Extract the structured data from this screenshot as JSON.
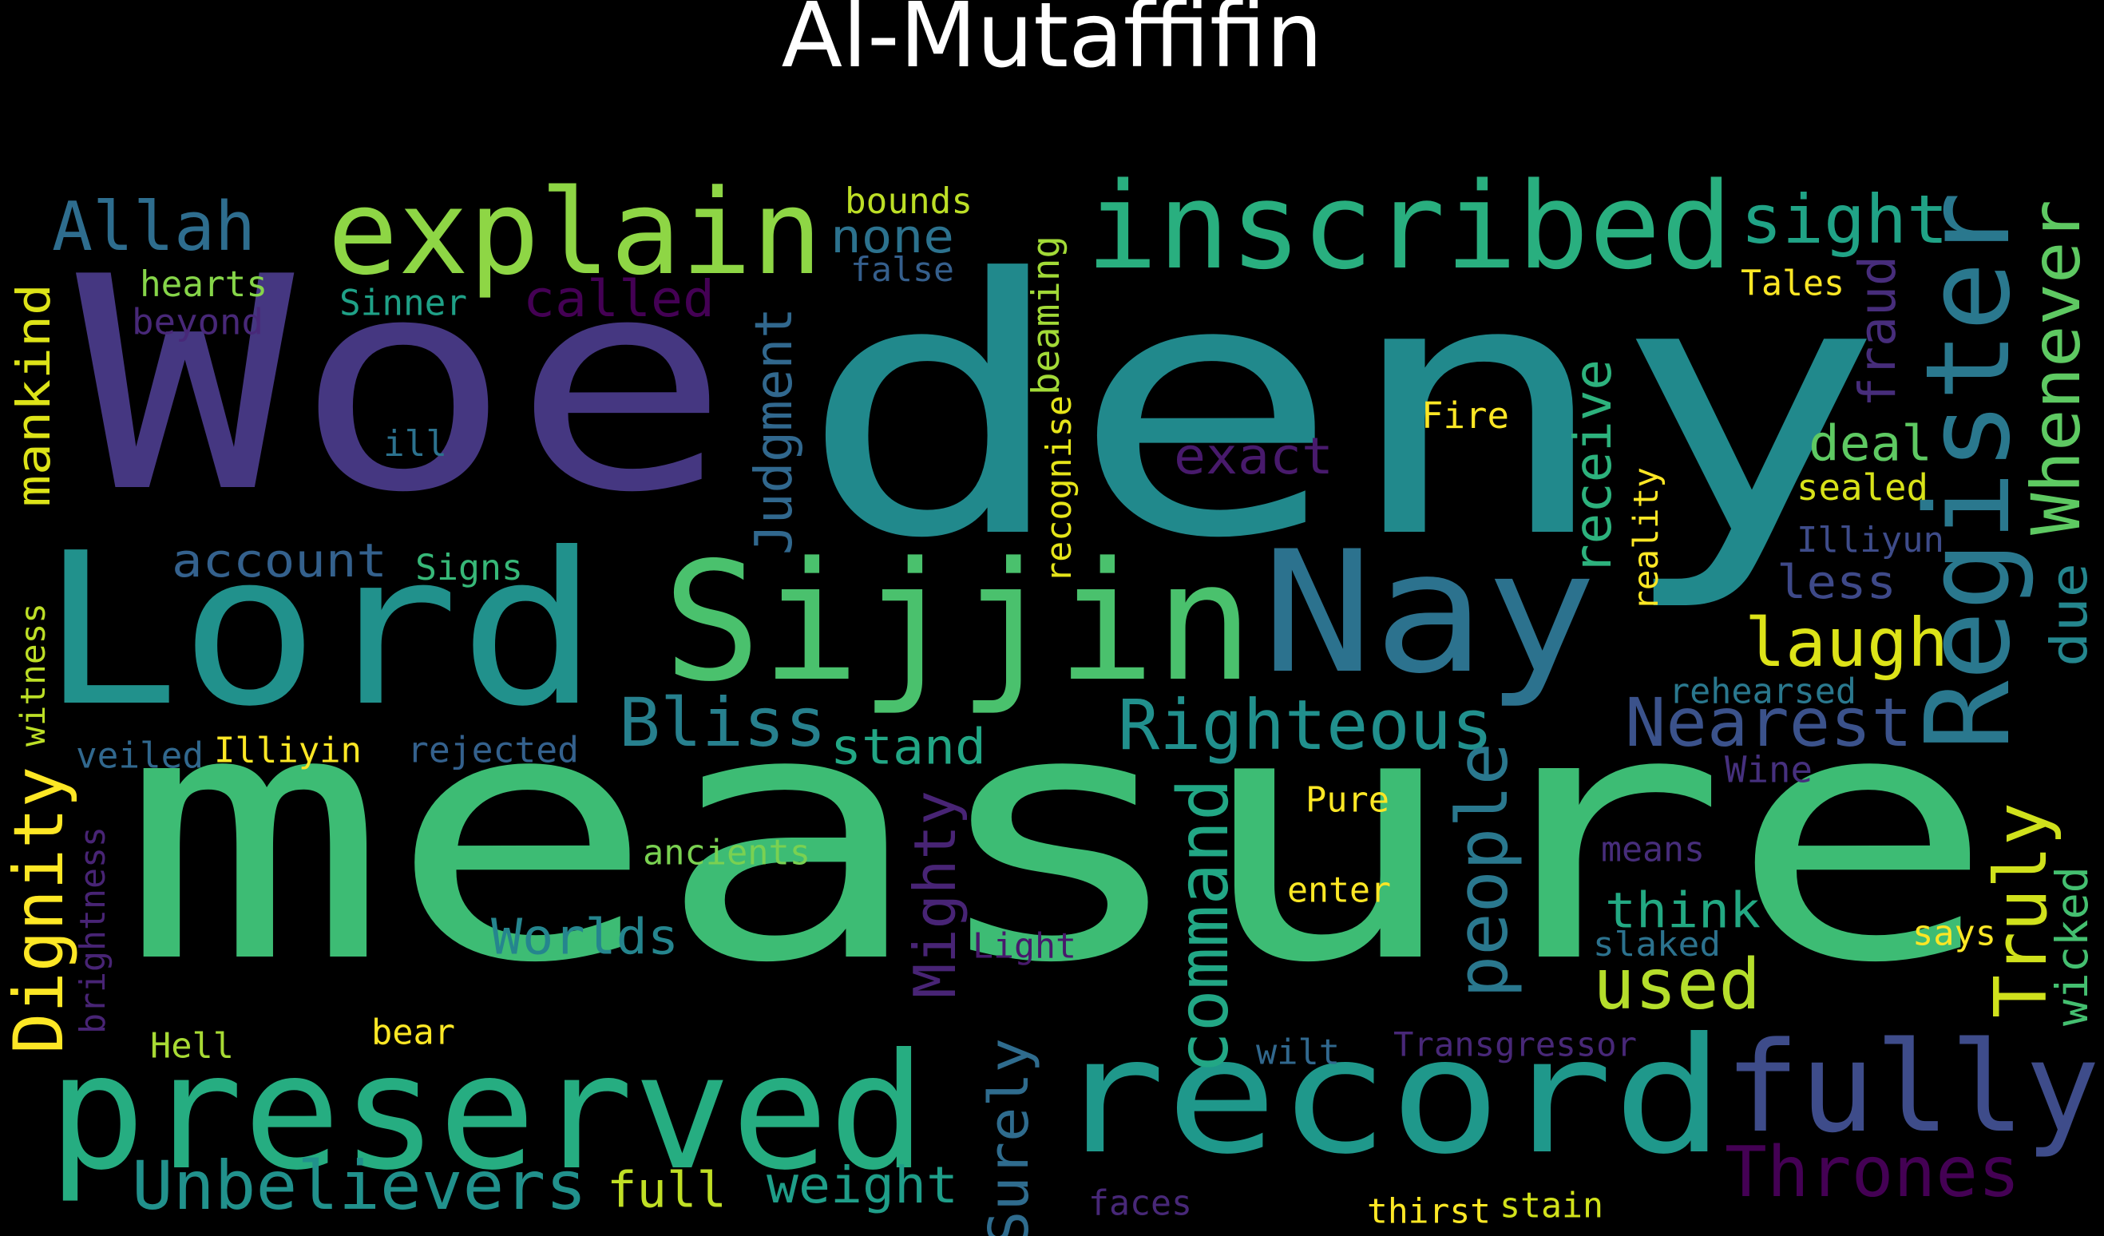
{
  "title": "Al-Mutaffifin",
  "words": [
    {
      "text": "measure",
      "color": "#3dbc74"
    },
    {
      "text": "deny",
      "color": "#21898c"
    },
    {
      "text": "Woe",
      "color": "#453781"
    },
    {
      "text": "Lord",
      "color": "#21918c"
    },
    {
      "text": "record",
      "color": "#1f988b"
    },
    {
      "text": "preserved",
      "color": "#26ad81"
    },
    {
      "text": "Sijjin",
      "color": "#4ac16d"
    },
    {
      "text": "Nay",
      "color": "#2c728e"
    },
    {
      "text": "fully",
      "color": "#3e4c8a"
    },
    {
      "text": "inscribed",
      "color": "#29af7f"
    },
    {
      "text": "explain",
      "color": "#8ed645"
    },
    {
      "text": "Register",
      "color": "#2a788e"
    },
    {
      "text": "Allah",
      "color": "#2e6d8e"
    },
    {
      "text": "sight",
      "color": "#20a386"
    },
    {
      "text": "Unbelievers",
      "color": "#21918c"
    },
    {
      "text": "Thrones",
      "color": "#440154"
    },
    {
      "text": "Righteous",
      "color": "#21908d"
    },
    {
      "text": "Nearest",
      "color": "#3b528b"
    },
    {
      "text": "Bliss",
      "color": "#27808e"
    },
    {
      "text": "command",
      "color": "#22a785"
    },
    {
      "text": "people",
      "color": "#2a788e"
    },
    {
      "text": "laugh",
      "color": "#dde318"
    },
    {
      "text": "used",
      "color": "#b5de2b"
    },
    {
      "text": "Truly",
      "color": "#d0e11c"
    },
    {
      "text": "Whenever",
      "color": "#5ec962"
    },
    {
      "text": "Dignity",
      "color": "#fde725"
    },
    {
      "text": "Judgment",
      "color": "#31688e"
    },
    {
      "text": "Mighty",
      "color": "#482475"
    },
    {
      "text": "Surely",
      "color": "#2f6c8e"
    },
    {
      "text": "called",
      "color": "#440154"
    },
    {
      "text": "weight",
      "color": "#1f9e89"
    },
    {
      "text": "full",
      "color": "#c0df25"
    },
    {
      "text": "stand",
      "color": "#22a785"
    },
    {
      "text": "account",
      "color": "#34618d"
    },
    {
      "text": "Worlds",
      "color": "#25858e"
    },
    {
      "text": "think",
      "color": "#23a983"
    },
    {
      "text": "exact",
      "color": "#481a6c"
    },
    {
      "text": "receive",
      "color": "#2db27d"
    },
    {
      "text": "deal",
      "color": "#5ec962"
    },
    {
      "text": "less",
      "color": "#3e4989"
    },
    {
      "text": "wicked",
      "color": "#44bf70"
    },
    {
      "text": "due",
      "color": "#24868e"
    },
    {
      "text": "fraud",
      "color": "#472d7b"
    },
    {
      "text": "mankind",
      "color": "#dde318"
    },
    {
      "text": "bounds",
      "color": "#bddf26"
    },
    {
      "text": "none",
      "color": "#2c728e"
    },
    {
      "text": "false",
      "color": "#355f8d"
    },
    {
      "text": "hearts",
      "color": "#86d549"
    },
    {
      "text": "beyond",
      "color": "#482878"
    },
    {
      "text": "Sinner",
      "color": "#1fa187"
    },
    {
      "text": "ill",
      "color": "#2c728e"
    },
    {
      "text": "Signs",
      "color": "#37b878"
    },
    {
      "text": "beaming",
      "color": "#a2da37"
    },
    {
      "text": "recognise",
      "color": "#e5e419"
    },
    {
      "text": "Fire",
      "color": "#fde725"
    },
    {
      "text": "reality",
      "color": "#fde725"
    },
    {
      "text": "sealed",
      "color": "#d8e219"
    },
    {
      "text": "Illiyun",
      "color": "#3e4c8a"
    },
    {
      "text": "Tales",
      "color": "#fde725"
    },
    {
      "text": "rehearsed",
      "color": "#2a788e"
    },
    {
      "text": "Wine",
      "color": "#46307e"
    },
    {
      "text": "witness",
      "color": "#bddf26"
    },
    {
      "text": "veiled",
      "color": "#31688e"
    },
    {
      "text": "Illiyin",
      "color": "#fde725"
    },
    {
      "text": "rejected",
      "color": "#34618d"
    },
    {
      "text": "brightness",
      "color": "#482475"
    },
    {
      "text": "ancients",
      "color": "#7ad151"
    },
    {
      "text": "Pure",
      "color": "#fde725"
    },
    {
      "text": "enter",
      "color": "#fde725"
    },
    {
      "text": "means",
      "color": "#472d7b"
    },
    {
      "text": "Light",
      "color": "#481a6c"
    },
    {
      "text": "slaked",
      "color": "#2c728e"
    },
    {
      "text": "says",
      "color": "#fde725"
    },
    {
      "text": "Hell",
      "color": "#a8db34"
    },
    {
      "text": "bear",
      "color": "#fde725"
    },
    {
      "text": "wilt",
      "color": "#31688e"
    },
    {
      "text": "Transgressor",
      "color": "#482878"
    },
    {
      "text": "faces",
      "color": "#482878"
    },
    {
      "text": "thirst",
      "color": "#fde725"
    },
    {
      "text": "stain",
      "color": "#d2e21b"
    }
  ]
}
